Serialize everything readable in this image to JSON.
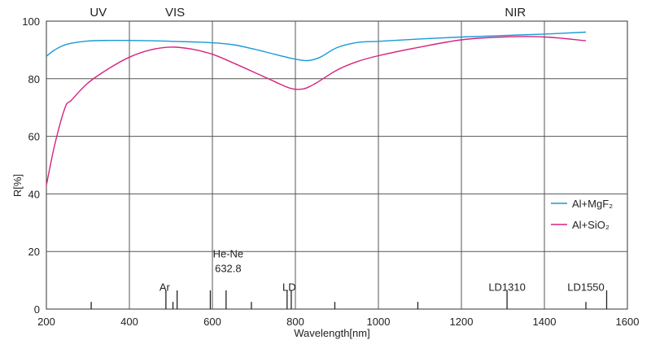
{
  "chart_data": {
    "type": "line",
    "title": "",
    "xlabel": "Wavelength[nm]",
    "ylabel": "R[%]",
    "xlim": [
      200,
      1600
    ],
    "ylim": [
      0,
      100
    ],
    "xticks": [
      200,
      400,
      600,
      800,
      1000,
      1200,
      1400,
      1600
    ],
    "yticks": [
      0,
      20,
      40,
      60,
      80,
      100
    ],
    "grid": true,
    "legend_position": "right-middle",
    "region_labels": [
      {
        "text": "UV",
        "x": 325
      },
      {
        "text": "VIS",
        "x": 510
      },
      {
        "text": "NIR",
        "x": 1330
      }
    ],
    "series": [
      {
        "name": "Al+MgF2",
        "legend_label": "Al+MgF₂",
        "color": "#1a9ad6",
        "x": [
          200,
          220,
          250,
          300,
          350,
          400,
          450,
          500,
          550,
          600,
          650,
          700,
          750,
          800,
          830,
          860,
          900,
          950,
          1000,
          1100,
          1200,
          1300,
          1400,
          1500
        ],
        "y": [
          87.8,
          90.0,
          92.0,
          93.1,
          93.3,
          93.3,
          93.2,
          93.0,
          92.8,
          92.5,
          91.8,
          90.3,
          88.5,
          86.8,
          86.3,
          87.5,
          90.8,
          92.6,
          93.0,
          93.8,
          94.5,
          95.0,
          95.5,
          96.2
        ]
      },
      {
        "name": "Al+SiO2",
        "legend_label": "Al+SiO₂",
        "color": "#d6247e",
        "x": [
          200,
          220,
          245,
          260,
          300,
          350,
          400,
          450,
          500,
          550,
          600,
          650,
          700,
          750,
          790,
          820,
          850,
          900,
          950,
          1000,
          1100,
          1200,
          1300,
          1400,
          1500
        ],
        "y": [
          43,
          57,
          70,
          72.5,
          78.5,
          83.5,
          87.5,
          90.0,
          91.0,
          90.3,
          88.5,
          85.5,
          82.3,
          79.0,
          76.6,
          76.5,
          78.5,
          83.0,
          86.0,
          88.0,
          91.0,
          93.5,
          94.5,
          94.5,
          93.2
        ]
      }
    ],
    "laser_lines": [
      {
        "x": 308,
        "h": 2.5
      },
      {
        "x": 488,
        "h": 6.5
      },
      {
        "x": 505,
        "h": 2.5
      },
      {
        "x": 515,
        "h": 6.5
      },
      {
        "x": 595,
        "h": 6.5
      },
      {
        "x": 633,
        "h": 6.5
      },
      {
        "x": 694,
        "h": 2.5
      },
      {
        "x": 780,
        "h": 6.5
      },
      {
        "x": 790,
        "h": 6.5
      },
      {
        "x": 895,
        "h": 2.5
      },
      {
        "x": 1095,
        "h": 2.5
      },
      {
        "x": 1310,
        "h": 6.5
      },
      {
        "x": 1500,
        "h": 2.5
      },
      {
        "x": 1550,
        "h": 6.5
      }
    ],
    "laser_labels": [
      {
        "lines": [
          "Ar"
        ],
        "x": 485,
        "y": 6.4
      },
      {
        "lines": [
          "He-Ne",
          "632.8"
        ],
        "x": 638,
        "y": 12.8
      },
      {
        "lines": [
          "LD"
        ],
        "x": 785,
        "y": 6.4
      },
      {
        "lines": [
          "LD1310"
        ],
        "x": 1310,
        "y": 6.4
      },
      {
        "lines": [
          "LD1550"
        ],
        "x": 1500,
        "y": 6.4
      }
    ]
  }
}
